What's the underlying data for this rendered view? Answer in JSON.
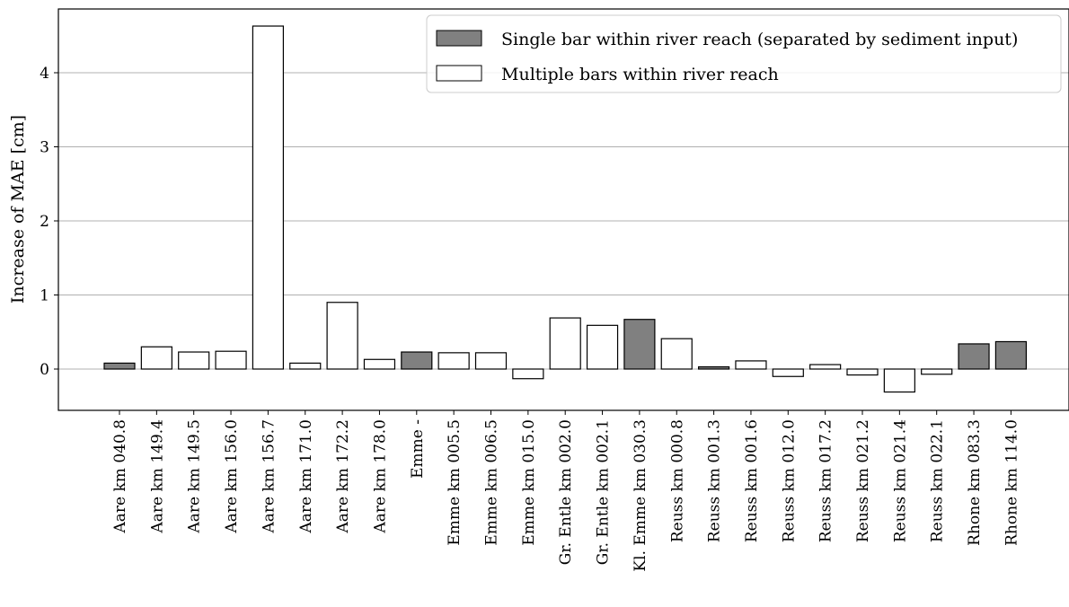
{
  "chart_data": {
    "type": "bar",
    "title": "",
    "xlabel": "",
    "ylabel": "Increase of MAE [cm]",
    "ylim": [
      -0.55,
      4.85
    ],
    "yticks": [
      0,
      1,
      2,
      3,
      4
    ],
    "ytick_labels": [
      "0",
      "1",
      "2",
      "3",
      "4"
    ],
    "grid": "horizontal",
    "legend_position": "top-right",
    "legend": [
      {
        "key": "single",
        "label": "Single bar within river reach (separated by sediment input)",
        "color": "#808080"
      },
      {
        "key": "multiple",
        "label": "Multiple bars within river reach",
        "color": "#ffffff"
      }
    ],
    "categories": [
      "Aare km 040.8",
      "Aare km 149.4",
      "Aare km 149.5",
      "Aare km 156.0",
      "Aare km 156.7",
      "Aare km 171.0",
      "Aare km 172.2",
      "Aare km 178.0",
      "Emme -",
      "Emme km 005.5",
      "Emme km 006.5",
      "Emme km 015.0",
      "Gr. Entle km 002.0",
      "Gr. Entle km 002.1",
      "Kl. Emme km 030.3",
      "Reuss km 000.8",
      "Reuss km 001.3",
      "Reuss km 001.6",
      "Reuss km 012.0",
      "Reuss km 017.2",
      "Reuss km 021.2",
      "Reuss km 021.4",
      "Reuss km 022.1",
      "Rhone km 083.3",
      "Rhone km 114.0"
    ],
    "values": [
      0.08,
      0.3,
      0.23,
      0.24,
      4.63,
      0.08,
      0.9,
      0.13,
      0.23,
      0.22,
      0.22,
      -0.13,
      0.69,
      0.59,
      0.67,
      0.41,
      0.03,
      0.11,
      -0.1,
      0.06,
      -0.08,
      -0.31,
      -0.07,
      0.34,
      0.37
    ],
    "groups": [
      "single",
      "multiple",
      "multiple",
      "multiple",
      "multiple",
      "multiple",
      "multiple",
      "multiple",
      "single",
      "multiple",
      "multiple",
      "multiple",
      "multiple",
      "multiple",
      "single",
      "multiple",
      "single",
      "multiple",
      "multiple",
      "multiple",
      "multiple",
      "multiple",
      "multiple",
      "single",
      "single"
    ]
  }
}
